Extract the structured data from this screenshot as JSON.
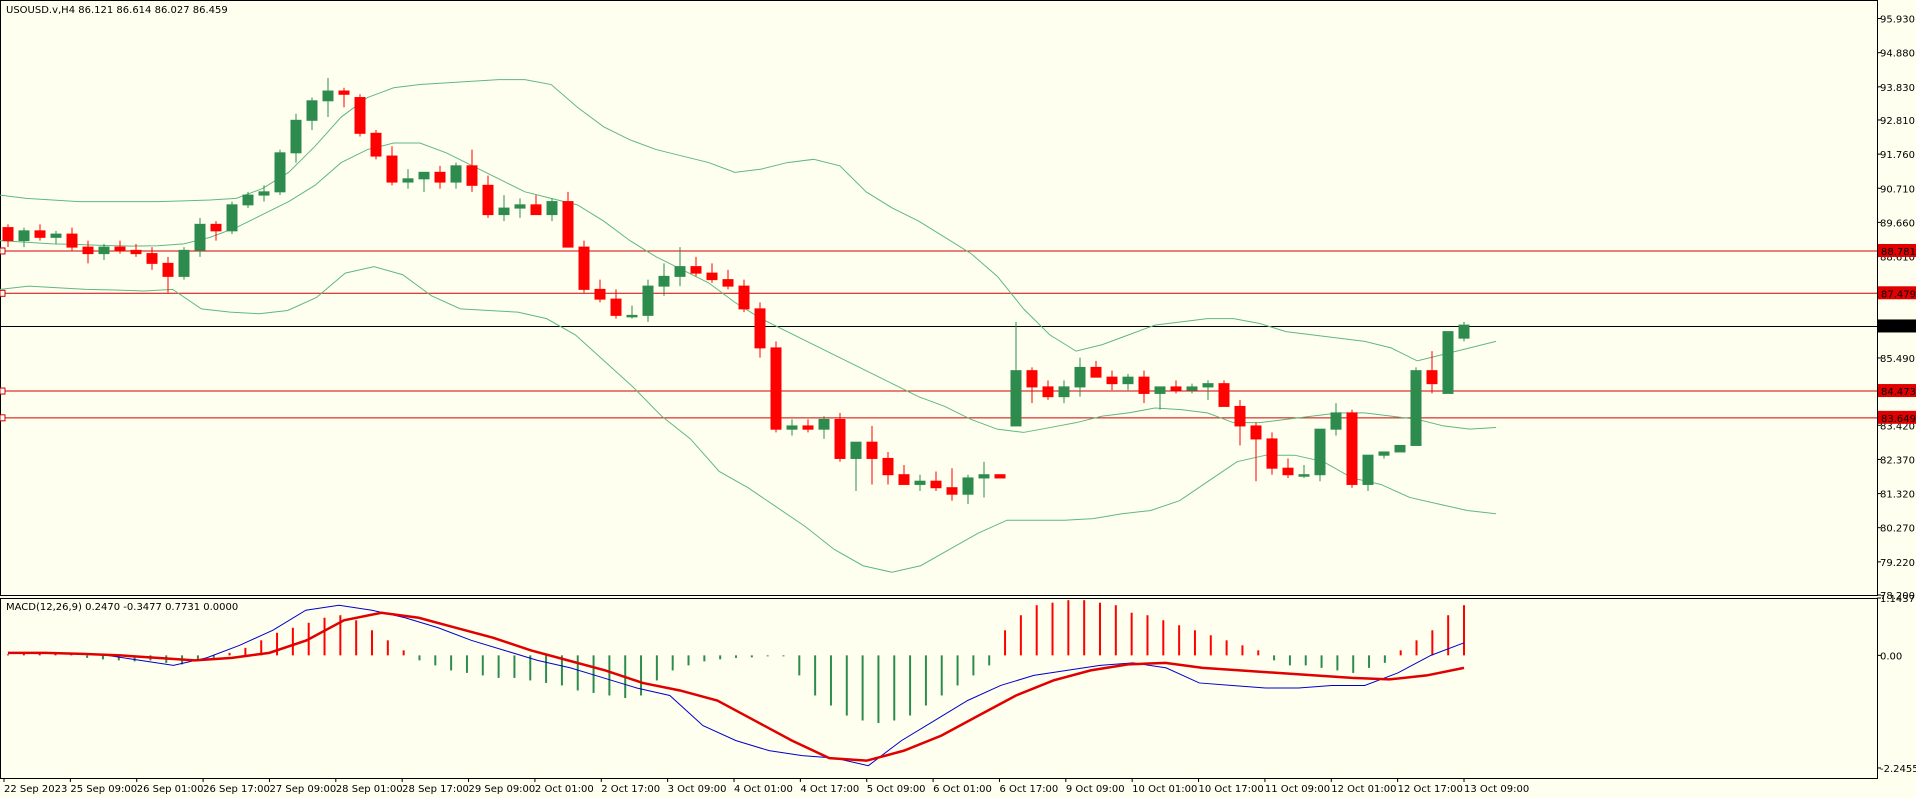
{
  "chart_data": [
    {
      "type": "candlestick",
      "title": "USOUSD.v,H4 86.121 86.614 86.027 86.459",
      "ylim": [
        78.2,
        96.5
      ],
      "y_ticks": [
        "95.930",
        "94.880",
        "93.830",
        "92.810",
        "91.760",
        "90.710",
        "89.660",
        "88.610",
        "87.560",
        "86.510",
        "85.490",
        "84.440",
        "83.420",
        "82.370",
        "81.320",
        "80.270",
        "79.220",
        "78.200"
      ],
      "x_ticks": [
        "22 Sep 2023",
        "25 Sep 09:00",
        "26 Sep 01:00",
        "26 Sep 17:00",
        "27 Sep 09:00",
        "28 Sep 01:00",
        "28 Sep 17:00",
        "29 Sep 09:00",
        "2 Oct 01:00",
        "2 Oct 17:00",
        "3 Oct 09:00",
        "4 Oct 01:00",
        "4 Oct 17:00",
        "5 Oct 09:00",
        "6 Oct 01:00",
        "6 Oct 17:00",
        "9 Oct 09:00",
        "10 Oct 01:00",
        "10 Oct 17:00",
        "11 Oct 09:00",
        "12 Oct 01:00",
        "12 Oct 17:00",
        "13 Oct 09:00"
      ],
      "series": [
        {
          "name": "OHLC",
          "values": [
            [
              89.5,
              89.6,
              88.9,
              89.1
            ],
            [
              89.1,
              89.5,
              88.9,
              89.4
            ],
            [
              89.4,
              89.6,
              89.1,
              89.2
            ],
            [
              89.2,
              89.4,
              89.0,
              89.3
            ],
            [
              89.3,
              89.5,
              88.8,
              88.9
            ],
            [
              88.9,
              89.1,
              88.4,
              88.7
            ],
            [
              88.7,
              89.0,
              88.5,
              88.9
            ],
            [
              88.9,
              89.1,
              88.7,
              88.8
            ],
            [
              88.8,
              89.0,
              88.6,
              88.7
            ],
            [
              88.7,
              88.9,
              88.2,
              88.4
            ],
            [
              88.4,
              88.6,
              87.5,
              88.0
            ],
            [
              88.0,
              88.9,
              87.9,
              88.8
            ],
            [
              88.8,
              89.8,
              88.6,
              89.6
            ],
            [
              89.6,
              89.7,
              89.1,
              89.4
            ],
            [
              89.4,
              90.3,
              89.3,
              90.2
            ],
            [
              90.2,
              90.6,
              90.1,
              90.5
            ],
            [
              90.5,
              90.8,
              90.3,
              90.6
            ],
            [
              90.6,
              91.9,
              90.5,
              91.8
            ],
            [
              91.8,
              93.0,
              91.5,
              92.8
            ],
            [
              92.8,
              93.5,
              92.5,
              93.4
            ],
            [
              93.4,
              94.1,
              92.9,
              93.7
            ],
            [
              93.7,
              93.8,
              93.2,
              93.6
            ],
            [
              93.5,
              93.6,
              92.3,
              92.4
            ],
            [
              92.4,
              92.5,
              91.6,
              91.7
            ],
            [
              91.7,
              92.0,
              90.8,
              90.9
            ],
            [
              90.9,
              91.3,
              90.7,
              91.0
            ],
            [
              91.0,
              91.2,
              90.6,
              91.2
            ],
            [
              91.2,
              91.4,
              90.7,
              90.9
            ],
            [
              90.9,
              91.5,
              90.7,
              91.4
            ],
            [
              91.4,
              91.9,
              90.6,
              90.8
            ],
            [
              90.8,
              91.1,
              89.8,
              89.9
            ],
            [
              89.9,
              90.5,
              89.7,
              90.1
            ],
            [
              90.1,
              90.4,
              89.8,
              90.2
            ],
            [
              90.2,
              90.5,
              89.9,
              89.9
            ],
            [
              89.9,
              90.4,
              89.7,
              90.3
            ],
            [
              90.3,
              90.6,
              88.9,
              88.9
            ],
            [
              88.9,
              89.1,
              87.5,
              87.6
            ],
            [
              87.6,
              87.9,
              87.2,
              87.3
            ],
            [
              87.3,
              87.6,
              86.7,
              86.8
            ],
            [
              86.8,
              87.1,
              86.7,
              86.8
            ],
            [
              86.8,
              87.9,
              86.6,
              87.7
            ],
            [
              87.7,
              88.4,
              87.4,
              88.0
            ],
            [
              88.0,
              88.9,
              87.7,
              88.3
            ],
            [
              88.3,
              88.6,
              88.0,
              88.1
            ],
            [
              88.1,
              88.4,
              87.8,
              87.9
            ],
            [
              87.9,
              88.2,
              87.6,
              87.7
            ],
            [
              87.7,
              87.9,
              86.9,
              87.0
            ],
            [
              87.0,
              87.2,
              85.5,
              85.8
            ],
            [
              85.8,
              86.0,
              83.2,
              83.3
            ],
            [
              83.3,
              83.6,
              83.1,
              83.4
            ],
            [
              83.4,
              83.6,
              83.2,
              83.3
            ],
            [
              83.3,
              83.7,
              83.0,
              83.6
            ],
            [
              83.6,
              83.8,
              82.3,
              82.4
            ],
            [
              82.4,
              82.9,
              81.4,
              82.9
            ],
            [
              82.9,
              83.4,
              81.6,
              82.4
            ],
            [
              82.4,
              82.6,
              81.6,
              81.9
            ],
            [
              81.9,
              82.2,
              81.6,
              81.6
            ],
            [
              81.6,
              81.9,
              81.4,
              81.7
            ],
            [
              81.7,
              82.0,
              81.4,
              81.5
            ],
            [
              81.5,
              82.1,
              81.1,
              81.3
            ],
            [
              81.3,
              81.9,
              81.0,
              81.8
            ],
            [
              81.8,
              82.3,
              81.2,
              81.9
            ],
            [
              81.9,
              81.9,
              81.8,
              81.8
            ],
            [
              83.4,
              86.6,
              83.4,
              85.1
            ],
            [
              85.1,
              85.2,
              84.1,
              84.6
            ],
            [
              84.6,
              84.8,
              84.2,
              84.3
            ],
            [
              84.3,
              84.8,
              84.1,
              84.6
            ],
            [
              84.6,
              85.5,
              84.3,
              85.2
            ],
            [
              85.2,
              85.4,
              84.9,
              84.9
            ],
            [
              84.9,
              85.1,
              84.5,
              84.7
            ],
            [
              84.7,
              85.0,
              84.5,
              84.9
            ],
            [
              84.9,
              85.1,
              84.1,
              84.4
            ],
            [
              84.4,
              84.6,
              83.9,
              84.6
            ],
            [
              84.6,
              84.8,
              84.4,
              84.5
            ],
            [
              84.5,
              84.7,
              84.4,
              84.6
            ],
            [
              84.6,
              84.8,
              84.2,
              84.7
            ],
            [
              84.7,
              84.8,
              84.0,
              84.0
            ],
            [
              84.0,
              84.2,
              82.8,
              83.4
            ],
            [
              83.4,
              83.5,
              81.7,
              83.0
            ],
            [
              83.0,
              83.2,
              81.9,
              82.1
            ],
            [
              82.1,
              82.4,
              81.8,
              81.9
            ],
            [
              81.9,
              82.2,
              81.8,
              81.9
            ],
            [
              81.9,
              83.3,
              81.7,
              83.3
            ],
            [
              83.3,
              84.1,
              83.1,
              83.8
            ],
            [
              83.8,
              83.9,
              81.5,
              81.6
            ],
            [
              81.6,
              82.5,
              81.4,
              82.5
            ],
            [
              82.5,
              82.6,
              82.4,
              82.6
            ],
            [
              82.6,
              82.8,
              82.6,
              82.8
            ],
            [
              82.8,
              85.2,
              82.8,
              85.1
            ],
            [
              85.1,
              85.7,
              84.4,
              84.7
            ],
            [
              84.4,
              86.3,
              84.4,
              86.3
            ],
            [
              86.1,
              86.6,
              86.0,
              86.5
            ]
          ]
        },
        {
          "name": "BB upper",
          "values": [
            90.5,
            90.4,
            90.35,
            90.3,
            90.3,
            90.3,
            90.3,
            90.32,
            90.35,
            90.4,
            90.7,
            91.2,
            92.0,
            92.9,
            93.5,
            93.8,
            93.9,
            93.95,
            94.0,
            94.05,
            94.05,
            93.9,
            93.2,
            92.6,
            92.2,
            91.9,
            91.7,
            91.5,
            91.2,
            91.3,
            91.5,
            91.6,
            91.4,
            90.6,
            90.1,
            89.7,
            89.2,
            88.7,
            88.0,
            87.0,
            86.2,
            85.7,
            85.9,
            86.2,
            86.5,
            86.6,
            86.7,
            86.7,
            86.55,
            86.3,
            86.2,
            86.1,
            86.0,
            85.8,
            85.4,
            85.6,
            85.8,
            86.0
          ]
        },
        {
          "name": "BB middle",
          "values": [
            89.1,
            89.05,
            89.0,
            88.98,
            88.95,
            88.93,
            88.94,
            89.0,
            89.2,
            89.5,
            89.9,
            90.3,
            90.8,
            91.5,
            91.9,
            92.1,
            92.1,
            91.8,
            91.4,
            91.0,
            90.6,
            90.4,
            90.2,
            89.7,
            89.1,
            88.6,
            88.2,
            87.8,
            87.2,
            86.7,
            86.3,
            85.9,
            85.5,
            85.1,
            84.7,
            84.3,
            84.0,
            83.6,
            83.3,
            83.2,
            83.35,
            83.5,
            83.7,
            83.8,
            83.95,
            83.9,
            83.8,
            83.5,
            83.5,
            83.6,
            83.7,
            83.8,
            83.8,
            83.7,
            83.6,
            83.4,
            83.3,
            83.35
          ]
        },
        {
          "name": "BB lower",
          "values": [
            87.6,
            87.7,
            87.65,
            87.6,
            87.58,
            87.55,
            87.6,
            87.0,
            86.9,
            86.85,
            86.95,
            87.35,
            88.1,
            88.3,
            88.05,
            87.4,
            87.0,
            86.95,
            86.9,
            86.7,
            86.2,
            85.4,
            84.6,
            83.7,
            83.0,
            82.0,
            81.5,
            80.9,
            80.3,
            79.6,
            79.1,
            78.9,
            79.1,
            79.6,
            80.1,
            80.5,
            80.5,
            80.5,
            80.55,
            80.7,
            80.8,
            81.1,
            81.7,
            82.3,
            82.5,
            82.5,
            82.3,
            81.8,
            81.6,
            81.2,
            81.0,
            80.8,
            80.7
          ]
        },
        {
          "name": "Support/Resistance",
          "values": [
            88.781,
            87.479,
            86.459,
            84.473,
            83.649
          ]
        }
      ],
      "price_tags": [
        "88.781",
        "87.479",
        "86.459",
        "84.473",
        "83.649"
      ]
    },
    {
      "type": "bar",
      "title": "MACD(12,26,9) 0.2470 -0.3477 0.7731 0.0000",
      "ylim": [
        -2.4455,
        1.1437
      ],
      "y_ticks": [
        "1.1437",
        "0.00",
        "-2.2455"
      ],
      "series": [
        {
          "name": "Histogram",
          "values": [
            0.02,
            0.03,
            0.04,
            0.03,
            0.02,
            -0.05,
            -0.08,
            -0.1,
            -0.12,
            -0.1,
            -0.15,
            -0.18,
            -0.12,
            -0.05,
            0.05,
            0.15,
            0.3,
            0.45,
            0.55,
            0.65,
            0.75,
            0.8,
            0.7,
            0.5,
            0.3,
            0.1,
            -0.1,
            -0.2,
            -0.3,
            -0.35,
            -0.4,
            -0.45,
            -0.45,
            -0.5,
            -0.55,
            -0.6,
            -0.7,
            -0.75,
            -0.8,
            -0.85,
            -0.8,
            -0.5,
            -0.3,
            -0.2,
            -0.12,
            -0.08,
            -0.05,
            -0.04,
            -0.02,
            -0.02,
            -0.4,
            -0.8,
            -1.0,
            -1.2,
            -1.3,
            -1.35,
            -1.3,
            -1.2,
            -1.0,
            -0.8,
            -0.6,
            -0.4,
            -0.2,
            0.5,
            0.8,
            1.0,
            1.05,
            1.1,
            1.1,
            1.05,
            1.0,
            0.85,
            0.8,
            0.7,
            0.6,
            0.5,
            0.4,
            0.3,
            0.2,
            0.1,
            -0.1,
            -0.2,
            -0.2,
            -0.25,
            -0.3,
            -0.35,
            -0.25,
            -0.15,
            0.1,
            0.3,
            0.5,
            0.8,
            1.0
          ]
        },
        {
          "name": "MACD line",
          "values": [
            0.05,
            0.05,
            0.04,
            0.0,
            -0.1,
            -0.2,
            -0.05,
            0.2,
            0.5,
            0.9,
            1.0,
            0.9,
            0.75,
            0.55,
            0.3,
            0.1,
            -0.1,
            -0.25,
            -0.45,
            -0.65,
            -0.8,
            -1.4,
            -1.7,
            -1.9,
            -2.0,
            -2.05,
            -2.2,
            -1.7,
            -1.3,
            -0.9,
            -0.6,
            -0.4,
            -0.3,
            -0.2,
            -0.15,
            -0.25,
            -0.55,
            -0.6,
            -0.65,
            -0.65,
            -0.6,
            -0.6,
            -0.35,
            0.0,
            0.25
          ]
        },
        {
          "name": "Signal line",
          "values": [
            0.05,
            0.05,
            0.03,
            0.0,
            -0.05,
            -0.1,
            -0.05,
            0.05,
            0.3,
            0.7,
            0.85,
            0.75,
            0.55,
            0.35,
            0.1,
            -0.1,
            -0.3,
            -0.55,
            -0.7,
            -0.9,
            -1.3,
            -1.7,
            -2.05,
            -2.1,
            -1.9,
            -1.6,
            -1.2,
            -0.8,
            -0.5,
            -0.3,
            -0.18,
            -0.15,
            -0.25,
            -0.3,
            -0.35,
            -0.4,
            -0.45,
            -0.48,
            -0.4,
            -0.25
          ]
        }
      ]
    }
  ],
  "colors": {
    "background": "#fffff0",
    "bull": "#2e8b4e",
    "bear": "#ff0000",
    "bands": "#5fb87f",
    "levels": "#d00000",
    "current": "#000000",
    "macd": "#0000cc",
    "signal": "#e00000"
  }
}
